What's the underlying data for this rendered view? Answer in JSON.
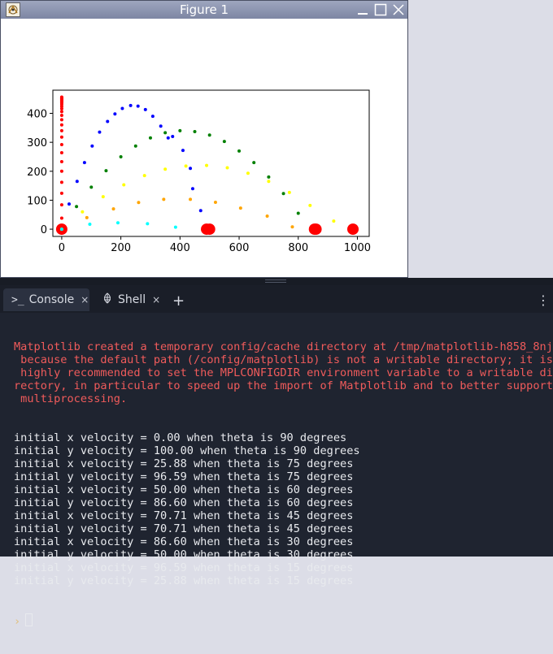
{
  "figure_window": {
    "title": "Figure 1"
  },
  "chart_data": {
    "type": "scatter",
    "xlim": [
      -30,
      1040
    ],
    "ylim": [
      -25,
      480
    ],
    "xticks": [
      "0",
      "200",
      "400",
      "600",
      "800",
      "1000"
    ],
    "yticks": [
      "0",
      "100",
      "200",
      "300",
      "400"
    ],
    "grid": false,
    "legend": "none",
    "series": [
      {
        "color": "#ff0000",
        "landing_x": 0,
        "points": [
          [
            0,
            0
          ],
          [
            0,
            38
          ],
          [
            0,
            84
          ],
          [
            0,
            124
          ],
          [
            0,
            162
          ],
          [
            0,
            200
          ],
          [
            0,
            233
          ],
          [
            0,
            264
          ],
          [
            0,
            292
          ],
          [
            0,
            318
          ],
          [
            0,
            340
          ],
          [
            0,
            360
          ],
          [
            0,
            378
          ],
          [
            0,
            393
          ],
          [
            0,
            406
          ],
          [
            0,
            416
          ],
          [
            0,
            424
          ],
          [
            0,
            431
          ],
          [
            0,
            436
          ],
          [
            0,
            440
          ],
          [
            0,
            443
          ],
          [
            0,
            446
          ],
          [
            0,
            448
          ],
          [
            0,
            450
          ],
          [
            0,
            452
          ],
          [
            0,
            454
          ],
          [
            0,
            456
          ]
        ]
      },
      {
        "color": "#0000ff",
        "landing_x": 490,
        "points": [
          [
            0,
            0
          ],
          [
            25,
            87
          ],
          [
            52,
            165
          ],
          [
            77,
            230
          ],
          [
            103,
            287
          ],
          [
            128,
            335
          ],
          [
            155,
            372
          ],
          [
            180,
            398
          ],
          [
            205,
            417
          ],
          [
            233,
            427
          ],
          [
            258,
            425
          ],
          [
            283,
            413
          ],
          [
            308,
            390
          ],
          [
            335,
            356
          ],
          [
            360,
            315
          ],
          [
            375,
            320
          ],
          [
            410,
            272
          ],
          [
            435,
            210
          ],
          [
            443,
            140
          ],
          [
            470,
            64
          ],
          [
            490,
            0
          ]
        ]
      },
      {
        "color": "#008000",
        "landing_x": 855,
        "points": [
          [
            0,
            0
          ],
          [
            50,
            78
          ],
          [
            100,
            145
          ],
          [
            150,
            202
          ],
          [
            200,
            250
          ],
          [
            250,
            287
          ],
          [
            300,
            315
          ],
          [
            350,
            333
          ],
          [
            400,
            340
          ],
          [
            450,
            337
          ],
          [
            500,
            325
          ],
          [
            550,
            303
          ],
          [
            600,
            270
          ],
          [
            650,
            230
          ],
          [
            700,
            180
          ],
          [
            750,
            123
          ],
          [
            800,
            55
          ],
          [
            855,
            0
          ]
        ]
      },
      {
        "color": "#ffff00",
        "landing_x": 985,
        "points": [
          [
            0,
            0
          ],
          [
            70,
            60
          ],
          [
            140,
            112
          ],
          [
            210,
            153
          ],
          [
            280,
            185
          ],
          [
            350,
            207
          ],
          [
            420,
            218
          ],
          [
            490,
            220
          ],
          [
            560,
            212
          ],
          [
            630,
            193
          ],
          [
            700,
            165
          ],
          [
            770,
            127
          ],
          [
            840,
            82
          ],
          [
            920,
            28
          ],
          [
            985,
            0
          ]
        ]
      },
      {
        "color": "#ffa500",
        "landing_x": 860,
        "points": [
          [
            0,
            0
          ],
          [
            85,
            40
          ],
          [
            175,
            70
          ],
          [
            260,
            92
          ],
          [
            345,
            103
          ],
          [
            435,
            103
          ],
          [
            520,
            93
          ],
          [
            605,
            73
          ],
          [
            695,
            45
          ],
          [
            780,
            8
          ],
          [
            860,
            0
          ]
        ]
      },
      {
        "color": "#00ffff",
        "landing_x": 500,
        "points": [
          [
            0,
            0
          ],
          [
            95,
            17
          ],
          [
            190,
            22
          ],
          [
            290,
            19
          ],
          [
            385,
            7
          ],
          [
            500,
            0
          ]
        ]
      }
    ]
  },
  "console": {
    "tabs": [
      {
        "icon": "terminal-icon",
        "label": "Console",
        "close": "×"
      },
      {
        "icon": "shell-icon",
        "label": "Shell",
        "close": "×"
      }
    ],
    "add_tab": "+",
    "menu": "⋮",
    "warning_lines": [
      "Matplotlib created a temporary config/cache directory at /tmp/matplotlib-h858_8nj",
      " because the default path (/config/matplotlib) is not a writable directory; it is",
      " highly recommended to set the MPLCONFIGDIR environment variable to a writable di",
      "rectory, in particular to speed up the import of Matplotlib and to better support",
      " multiprocessing."
    ],
    "output_lines": [
      "initial x velocity = 0.00 when theta is 90 degrees",
      "initial y velocity = 100.00 when theta is 90 degrees",
      "initial x velocity = 25.88 when theta is 75 degrees",
      "initial y velocity = 96.59 when theta is 75 degrees",
      "initial x velocity = 50.00 when theta is 60 degrees",
      "initial y velocity = 86.60 when theta is 60 degrees",
      "initial x velocity = 70.71 when theta is 45 degrees",
      "initial y velocity = 70.71 when theta is 45 degrees",
      "initial x velocity = 86.60 when theta is 30 degrees",
      "initial y velocity = 50.00 when theta is 30 degrees",
      "initial x velocity = 96.59 when theta is 15 degrees",
      "initial y velocity = 25.88 when theta is 15 degrees"
    ],
    "prompt": "›"
  }
}
